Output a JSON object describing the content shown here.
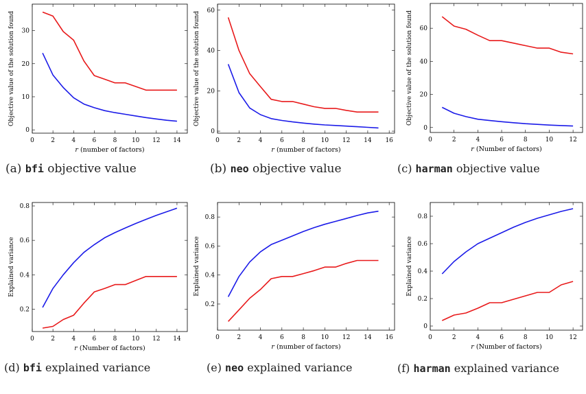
{
  "chart_data": [
    {
      "type": "line",
      "ylabel": "Objective value of the solution found",
      "xlabel_var": "r",
      "xlabel_rest": " (number of factors)",
      "xlim": [
        0,
        15
      ],
      "ylim": [
        -1,
        38
      ],
      "xticks": [
        0,
        2,
        4,
        6,
        8,
        10,
        12,
        14
      ],
      "yticks": [
        0,
        10,
        20,
        30
      ],
      "caption": {
        "tag": "(a)",
        "mono": "bfi",
        "rest": " objective value"
      },
      "series": [
        {
          "color": "#e8191a",
          "x": [
            1,
            2,
            3,
            4,
            5,
            6,
            7,
            8,
            9,
            10,
            11,
            12,
            13,
            14
          ],
          "y": [
            35.6,
            34.4,
            29.7,
            27.1,
            20.8,
            16.4,
            15.3,
            14.2,
            14.2,
            13.1,
            12.0,
            12.0,
            12.0,
            12.0
          ]
        },
        {
          "color": "#1a1ae8",
          "x": [
            1,
            2,
            3,
            4,
            5,
            6,
            7,
            8,
            9,
            10,
            11,
            12,
            13,
            14
          ],
          "y": [
            23.2,
            16.6,
            12.8,
            9.7,
            7.8,
            6.7,
            5.8,
            5.2,
            4.7,
            4.2,
            3.7,
            3.3,
            2.9,
            2.6
          ]
        }
      ]
    },
    {
      "type": "line",
      "ylabel": "Objective value of the solution found",
      "xlabel_var": "r",
      "xlabel_rest": " (number of factors)",
      "xlim": [
        0,
        16.5
      ],
      "ylim": [
        -1,
        63
      ],
      "xticks": [
        0,
        2,
        4,
        6,
        8,
        10,
        12,
        14,
        16
      ],
      "yticks": [
        0,
        20,
        40,
        60
      ],
      "caption": {
        "tag": "(b)",
        "mono": "neo",
        "rest": " objective value"
      },
      "series": [
        {
          "color": "#e8191a",
          "x": [
            1,
            2,
            3,
            4,
            5,
            6,
            7,
            8,
            9,
            10,
            11,
            12,
            13,
            14,
            15
          ],
          "y": [
            56.4,
            40.0,
            28.5,
            22.1,
            15.8,
            14.7,
            14.7,
            13.4,
            12.1,
            11.3,
            11.3,
            10.3,
            9.5,
            9.5,
            9.5
          ]
        },
        {
          "color": "#1a1ae8",
          "x": [
            1,
            2,
            3,
            4,
            5,
            6,
            7,
            8,
            9,
            10,
            11,
            12,
            13,
            14,
            15
          ],
          "y": [
            33.2,
            19.1,
            11.5,
            8.2,
            6.2,
            5.3,
            4.6,
            4.0,
            3.5,
            3.1,
            2.8,
            2.5,
            2.2,
            1.9,
            1.6
          ]
        }
      ]
    },
    {
      "type": "line",
      "ylabel": "Objective value of the solution found",
      "xlabel_var": "r",
      "xlabel_rest": " (Number of factors)",
      "xlim": [
        0,
        12.8
      ],
      "ylim": [
        -3,
        75
      ],
      "xticks": [
        0,
        2,
        4,
        6,
        8,
        10,
        12
      ],
      "yticks": [
        0,
        20,
        40,
        60
      ],
      "caption": {
        "tag": "(c)",
        "mono": "harman",
        "rest": " objective value"
      },
      "series": [
        {
          "color": "#e8191a",
          "x": [
            1,
            2,
            3,
            4,
            5,
            6,
            7,
            8,
            9,
            10,
            11,
            12
          ],
          "y": [
            67.0,
            61.3,
            59.4,
            55.8,
            52.5,
            52.5,
            51.0,
            49.5,
            48.0,
            48.0,
            45.5,
            44.5
          ]
        },
        {
          "color": "#1a1ae8",
          "x": [
            1,
            2,
            3,
            4,
            5,
            6,
            7,
            8,
            9,
            10,
            11,
            12
          ],
          "y": [
            12.2,
            8.6,
            6.6,
            5.0,
            4.2,
            3.5,
            2.9,
            2.3,
            1.9,
            1.5,
            1.2,
            0.9
          ]
        }
      ]
    },
    {
      "type": "line",
      "ylabel": "Explained variance",
      "xlabel_var": "r",
      "xlabel_rest": " (Number of factors)",
      "xlim": [
        0,
        15
      ],
      "ylim": [
        0.07,
        0.82
      ],
      "xticks": [
        0,
        2,
        4,
        6,
        8,
        10,
        12,
        14
      ],
      "yticks": [
        0.2,
        0.4,
        0.6,
        0.8
      ],
      "caption": {
        "tag": "(d)",
        "mono": "bfi",
        "rest": " explained variance"
      },
      "series": [
        {
          "color": "#1a1ae8",
          "x": [
            1,
            2,
            3,
            4,
            5,
            6,
            7,
            8,
            9,
            10,
            11,
            12,
            13,
            14
          ],
          "y": [
            0.21,
            0.32,
            0.4,
            0.47,
            0.53,
            0.575,
            0.615,
            0.645,
            0.672,
            0.698,
            0.722,
            0.745,
            0.766,
            0.787
          ]
        },
        {
          "color": "#e8191a",
          "x": [
            1,
            2,
            3,
            4,
            5,
            6,
            7,
            8,
            9,
            10,
            11,
            12,
            13,
            14
          ],
          "y": [
            0.09,
            0.1,
            0.14,
            0.165,
            0.235,
            0.3,
            0.32,
            0.343,
            0.343,
            0.367,
            0.39,
            0.39,
            0.39,
            0.39
          ]
        }
      ]
    },
    {
      "type": "line",
      "ylabel": "Explained variance",
      "xlabel_var": "r",
      "xlabel_rest": " (number of factors)",
      "xlim": [
        0,
        16.5
      ],
      "ylim": [
        0.02,
        0.9
      ],
      "xticks": [
        0,
        2,
        4,
        6,
        8,
        10,
        12,
        14,
        16
      ],
      "yticks": [
        0.2,
        0.4,
        0.6,
        0.8
      ],
      "caption": {
        "tag": "(e)",
        "mono": "neo",
        "rest": " explained variance"
      },
      "series": [
        {
          "color": "#1a1ae8",
          "x": [
            1,
            2,
            3,
            4,
            5,
            6,
            7,
            8,
            9,
            10,
            11,
            12,
            13,
            14,
            15
          ],
          "y": [
            0.25,
            0.39,
            0.49,
            0.56,
            0.61,
            0.64,
            0.67,
            0.7,
            0.727,
            0.75,
            0.77,
            0.79,
            0.81,
            0.828,
            0.84
          ]
        },
        {
          "color": "#e8191a",
          "x": [
            1,
            2,
            3,
            4,
            5,
            6,
            7,
            8,
            9,
            10,
            11,
            12,
            13,
            14,
            15
          ],
          "y": [
            0.08,
            0.16,
            0.24,
            0.3,
            0.375,
            0.39,
            0.39,
            0.41,
            0.43,
            0.455,
            0.455,
            0.48,
            0.5,
            0.5,
            0.5
          ]
        }
      ]
    },
    {
      "type": "line",
      "ylabel": "Explained variance",
      "xlabel_var": "r",
      "xlabel_rest": " (Number of factors)",
      "xlim": [
        0,
        12.8
      ],
      "ylim": [
        -0.03,
        0.9
      ],
      "xticks": [
        0,
        2,
        4,
        6,
        8,
        10,
        12
      ],
      "yticks": [
        0,
        0.2,
        0.4,
        0.6,
        0.8
      ],
      "caption": {
        "tag": "(f)",
        "mono": "harman",
        "rest": " explained variance"
      },
      "series": [
        {
          "color": "#1a1ae8",
          "x": [
            1,
            2,
            3,
            4,
            5,
            6,
            7,
            8,
            9,
            10,
            11,
            12
          ],
          "y": [
            0.38,
            0.47,
            0.54,
            0.6,
            0.64,
            0.68,
            0.72,
            0.755,
            0.785,
            0.81,
            0.835,
            0.855
          ]
        },
        {
          "color": "#e8191a",
          "x": [
            1,
            2,
            3,
            4,
            5,
            6,
            7,
            8,
            9,
            10,
            11,
            12
          ],
          "y": [
            0.04,
            0.08,
            0.095,
            0.13,
            0.17,
            0.17,
            0.195,
            0.22,
            0.245,
            0.245,
            0.3,
            0.325
          ]
        }
      ]
    }
  ]
}
